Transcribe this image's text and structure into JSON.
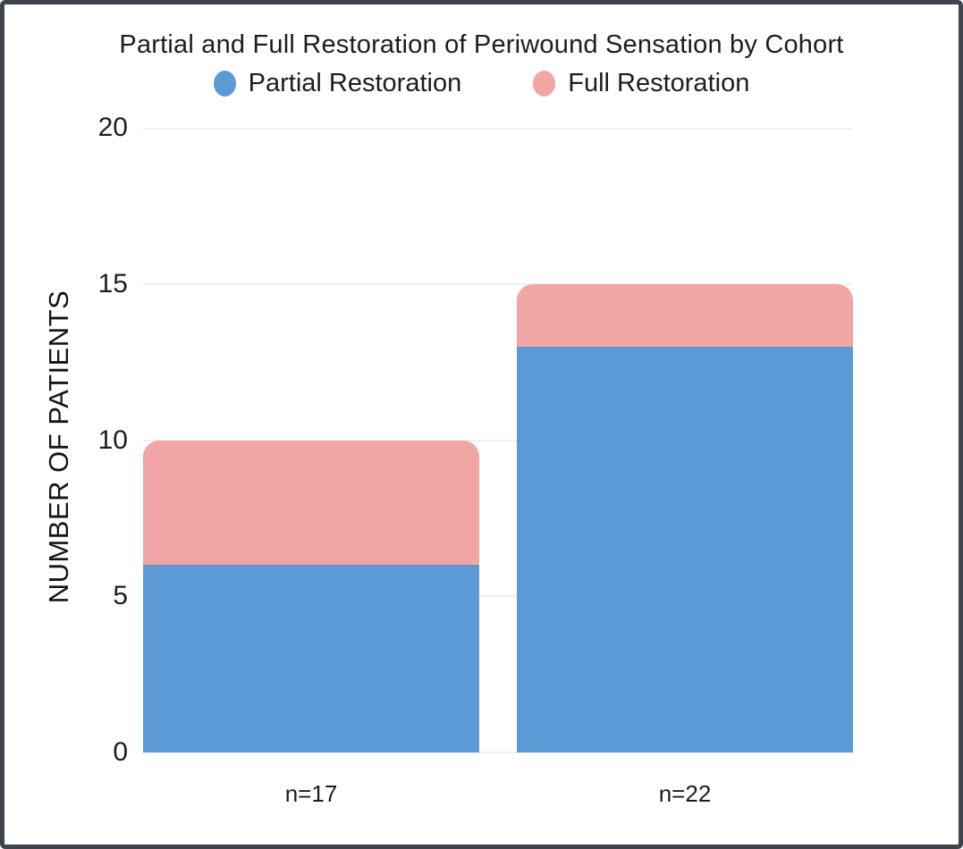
{
  "page": {
    "background": "#ffffff",
    "frame_border_color": "#3f434b",
    "text_color": "#1d1d1d"
  },
  "chart_data": {
    "type": "bar",
    "stacked": true,
    "title": "Partial and Full Restoration of Periwound Sensation by Cohort",
    "categories": [
      "n=17",
      "n=22"
    ],
    "series": [
      {
        "name": "Partial Restoration",
        "color": "#5b9ad7",
        "values": [
          6,
          13
        ]
      },
      {
        "name": "Full Restoration",
        "color": "#f2a5a5",
        "values": [
          4,
          2
        ]
      }
    ],
    "stack_totals": [
      10,
      15
    ],
    "xlabel": "",
    "ylabel": "NUMBER OF PATIENTS",
    "ylim": [
      0,
      20
    ],
    "yticks": [
      0,
      5,
      10,
      15,
      20
    ],
    "grid": true,
    "gridline_color": "#f0f0f0",
    "legend_position": "top"
  }
}
